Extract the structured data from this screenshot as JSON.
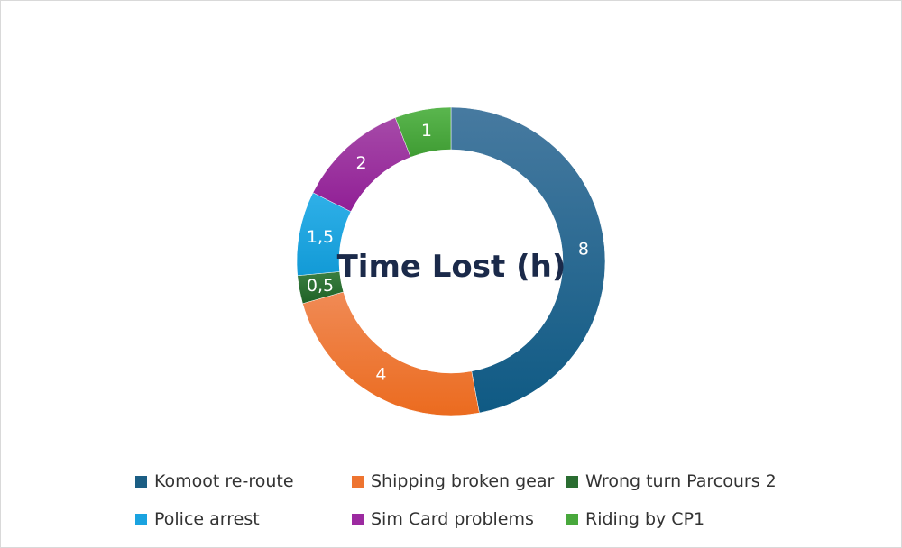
{
  "chart_data": {
    "type": "pie",
    "title": "Time Lost (h)",
    "legend_position": "bottom",
    "categories": [
      "Komoot re-route",
      "Shipping broken gear",
      "Wrong turn Parcours 2",
      "Police arrest",
      "Sim Card problems",
      "Riding by CP1"
    ],
    "values": [
      8,
      4,
      0.5,
      1.5,
      2,
      1
    ],
    "data_labels": [
      "8",
      "4",
      "0,5",
      "1,5",
      "2",
      "1"
    ],
    "colors": [
      "#1b5e84",
      "#ee7430",
      "#2a6d31",
      "#1aa3e0",
      "#9c2aa0",
      "#48a83c"
    ]
  }
}
